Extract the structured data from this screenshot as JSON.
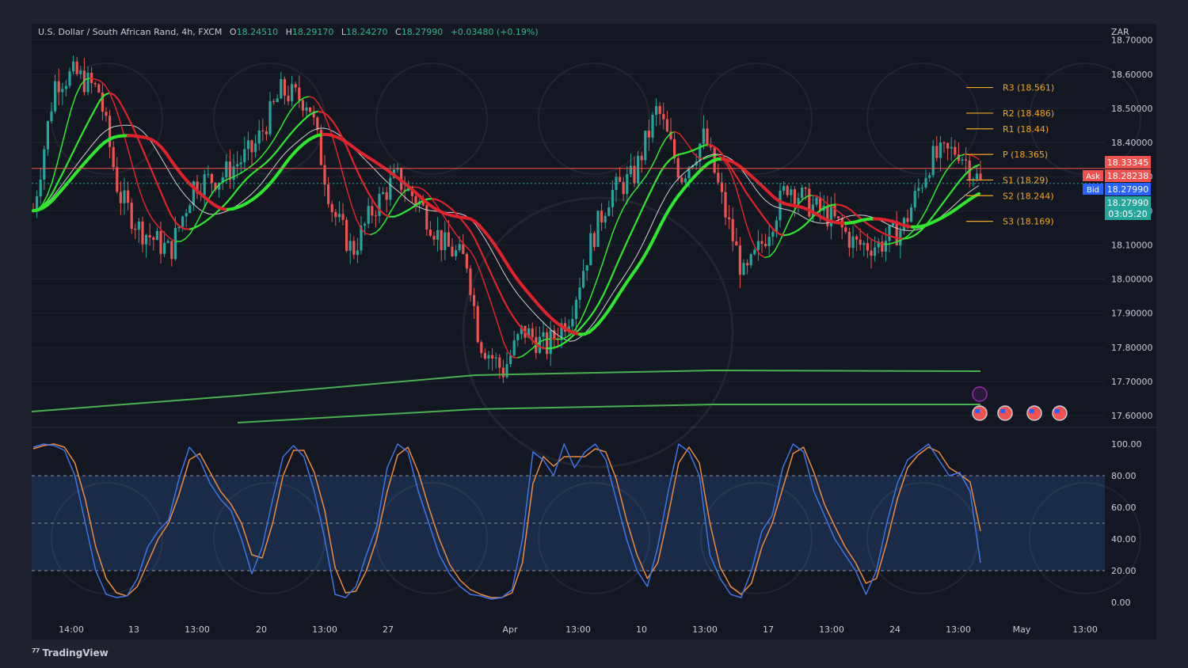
{
  "chart_data": {
    "type": "candlestick",
    "symbol": "U.S. Dollar / South African Rand",
    "interval": "4h",
    "exchange": "FXCM",
    "ohlc": {
      "O": "18.24510",
      "H": "18.29170",
      "L": "18.24270",
      "C": "18.27990",
      "change": "+0.03480",
      "change_pct": "(+0.19%)"
    },
    "currency": "ZAR",
    "ylim": [
      17.6,
      18.72
    ],
    "yticks": [
      "18.70000",
      "18.60000",
      "18.50000",
      "18.40000",
      "18.30000",
      "18.20000",
      "18.10000",
      "18.00000",
      "17.90000",
      "17.80000",
      "17.70000",
      "17.60000"
    ],
    "ytick_values": [
      18.7,
      18.6,
      18.5,
      18.4,
      18.3,
      18.2,
      18.1,
      18.0,
      17.9,
      17.8,
      17.7,
      17.6
    ],
    "xticks": [
      "14:00",
      "13",
      "13:00",
      "20",
      "13:00",
      "27",
      "Apr",
      "13:00",
      "10",
      "13:00",
      "17",
      "13:00",
      "24",
      "13:00",
      "May",
      "13:00"
    ],
    "pivots": [
      {
        "label": "R3 (18.561)",
        "value": 18.561
      },
      {
        "label": "R2 (18.486)",
        "value": 18.486
      },
      {
        "label": "R1 (18.44)",
        "value": 18.44
      },
      {
        "label": "P (18.365)",
        "value": 18.365
      },
      {
        "label": "S1 (18.29)",
        "value": 18.29
      },
      {
        "label": "S2 (18.244)",
        "value": 18.244
      },
      {
        "label": "S3 (18.169)",
        "value": 18.169
      }
    ],
    "price_tags": {
      "high": "18.33345",
      "ask_label": "Ask",
      "ask": "18.28238",
      "bid_label": "Bid",
      "bid": "18.27990",
      "last": "18.27990",
      "countdown": "03:05:20"
    },
    "oscillator": {
      "yticks": [
        "100.00",
        "80.00",
        "60.00",
        "40.00",
        "20.00",
        "0.00"
      ],
      "ytick_values": [
        100,
        80,
        60,
        40,
        20,
        0
      ],
      "upper_band": 80,
      "middle": 50,
      "lower_band": 20,
      "k": [
        98,
        100,
        99,
        96,
        80,
        50,
        20,
        5,
        3,
        4,
        15,
        35,
        45,
        52,
        78,
        98,
        90,
        75,
        65,
        58,
        40,
        18,
        35,
        65,
        92,
        99,
        92,
        70,
        40,
        5,
        3,
        10,
        30,
        48,
        85,
        100,
        95,
        70,
        50,
        30,
        18,
        10,
        5,
        4,
        2,
        3,
        8,
        40,
        95,
        90,
        80,
        100,
        85,
        95,
        100,
        90,
        65,
        40,
        20,
        10,
        35,
        70,
        100,
        95,
        80,
        30,
        15,
        5,
        3,
        20,
        45,
        55,
        85,
        100,
        95,
        70,
        55,
        40,
        30,
        20,
        5,
        20,
        50,
        75,
        90,
        95,
        100,
        90,
        80,
        82,
        70,
        25
      ],
      "d": [
        97,
        99,
        100,
        98,
        88,
        65,
        35,
        15,
        6,
        4,
        10,
        25,
        40,
        50,
        68,
        90,
        94,
        82,
        70,
        62,
        50,
        30,
        28,
        50,
        80,
        96,
        96,
        82,
        58,
        22,
        6,
        7,
        20,
        40,
        70,
        93,
        98,
        82,
        60,
        40,
        24,
        14,
        8,
        5,
        3,
        3,
        6,
        25,
        75,
        92,
        86,
        92,
        92,
        92,
        97,
        95,
        78,
        52,
        30,
        15,
        25,
        55,
        88,
        98,
        88,
        50,
        22,
        10,
        5,
        12,
        35,
        50,
        72,
        94,
        98,
        82,
        62,
        48,
        35,
        25,
        12,
        15,
        38,
        65,
        85,
        93,
        98,
        95,
        85,
        81,
        76,
        45
      ]
    },
    "brand": "TradingView",
    "colors": {
      "up": "#26a69a",
      "down": "#ef5350",
      "pivot": "#f5a623",
      "k": "#3f74e6",
      "d": "#f08a3c",
      "ma_green": "#2ee82e",
      "ma_red": "#e0222a"
    }
  }
}
